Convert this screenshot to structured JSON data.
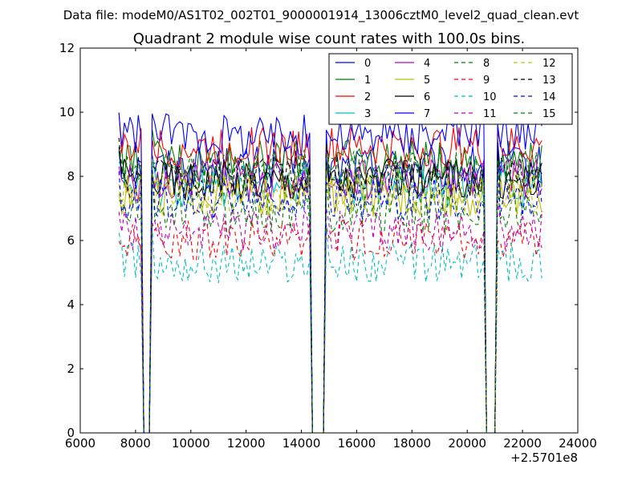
{
  "chart_data": {
    "type": "line",
    "suptitle": "Data file: modeM0/AS1T02_002T01_9000001914_13006cztM0_level2_quad_clean.evt",
    "title": "Quadrant 2 module wise count rates with 100.0s bins.",
    "xlabel": "",
    "ylabel": "",
    "x_offset_label": "+2.5701e8",
    "xlim": [
      6000,
      24000
    ],
    "ylim": [
      0,
      12
    ],
    "x_ticks": [
      6000,
      8000,
      10000,
      12000,
      14000,
      16000,
      18000,
      20000,
      22000,
      24000
    ],
    "x_tick_labels": [
      "6000",
      "8000",
      "10000",
      "12000",
      "14000",
      "16000",
      "18000",
      "20000",
      "22000",
      "24000"
    ],
    "y_ticks": [
      0,
      2,
      4,
      6,
      8,
      10,
      12
    ],
    "y_tick_labels": [
      "0",
      "2",
      "4",
      "6",
      "8",
      "10",
      "12"
    ],
    "grid": false,
    "legend_position": "top-right",
    "x_segments": [
      [
        7400,
        8200
      ],
      [
        8600,
        14300
      ],
      [
        14900,
        20600
      ],
      [
        21100,
        22700
      ]
    ],
    "series": [
      {
        "name": "0",
        "color": "#0000ff",
        "dash": "solid",
        "level": 8.3
      },
      {
        "name": "1",
        "color": "#008000",
        "dash": "solid",
        "level": 8.5
      },
      {
        "name": "2",
        "color": "#ff0000",
        "dash": "solid",
        "level": 8.9
      },
      {
        "name": "3",
        "color": "#00bfbf",
        "dash": "solid",
        "level": 7.7
      },
      {
        "name": "4",
        "color": "#bf00bf",
        "dash": "solid",
        "level": 7.9
      },
      {
        "name": "5",
        "color": "#bfbf00",
        "dash": "solid",
        "level": 7.4
      },
      {
        "name": "6",
        "color": "#000000",
        "dash": "solid",
        "level": 7.9
      },
      {
        "name": "7",
        "color": "#0000ff",
        "dash": "solid",
        "level": 9.3
      },
      {
        "name": "8",
        "color": "#008000",
        "dash": "dashed",
        "level": 6.9
      },
      {
        "name": "9",
        "color": "#ff0000",
        "dash": "dashed",
        "level": 6.0
      },
      {
        "name": "10",
        "color": "#00bfbf",
        "dash": "dashed",
        "level": 5.3
      },
      {
        "name": "11",
        "color": "#bf00bf",
        "dash": "dashed",
        "level": 6.3
      },
      {
        "name": "12",
        "color": "#bfbf00",
        "dash": "dashed",
        "level": 7.5
      },
      {
        "name": "13",
        "color": "#000000",
        "dash": "dashed",
        "level": 8.0
      },
      {
        "name": "14",
        "color": "#0000ff",
        "dash": "dashed",
        "level": 7.3
      },
      {
        "name": "15",
        "color": "#008000",
        "dash": "dashed",
        "level": 8.2
      }
    ]
  }
}
